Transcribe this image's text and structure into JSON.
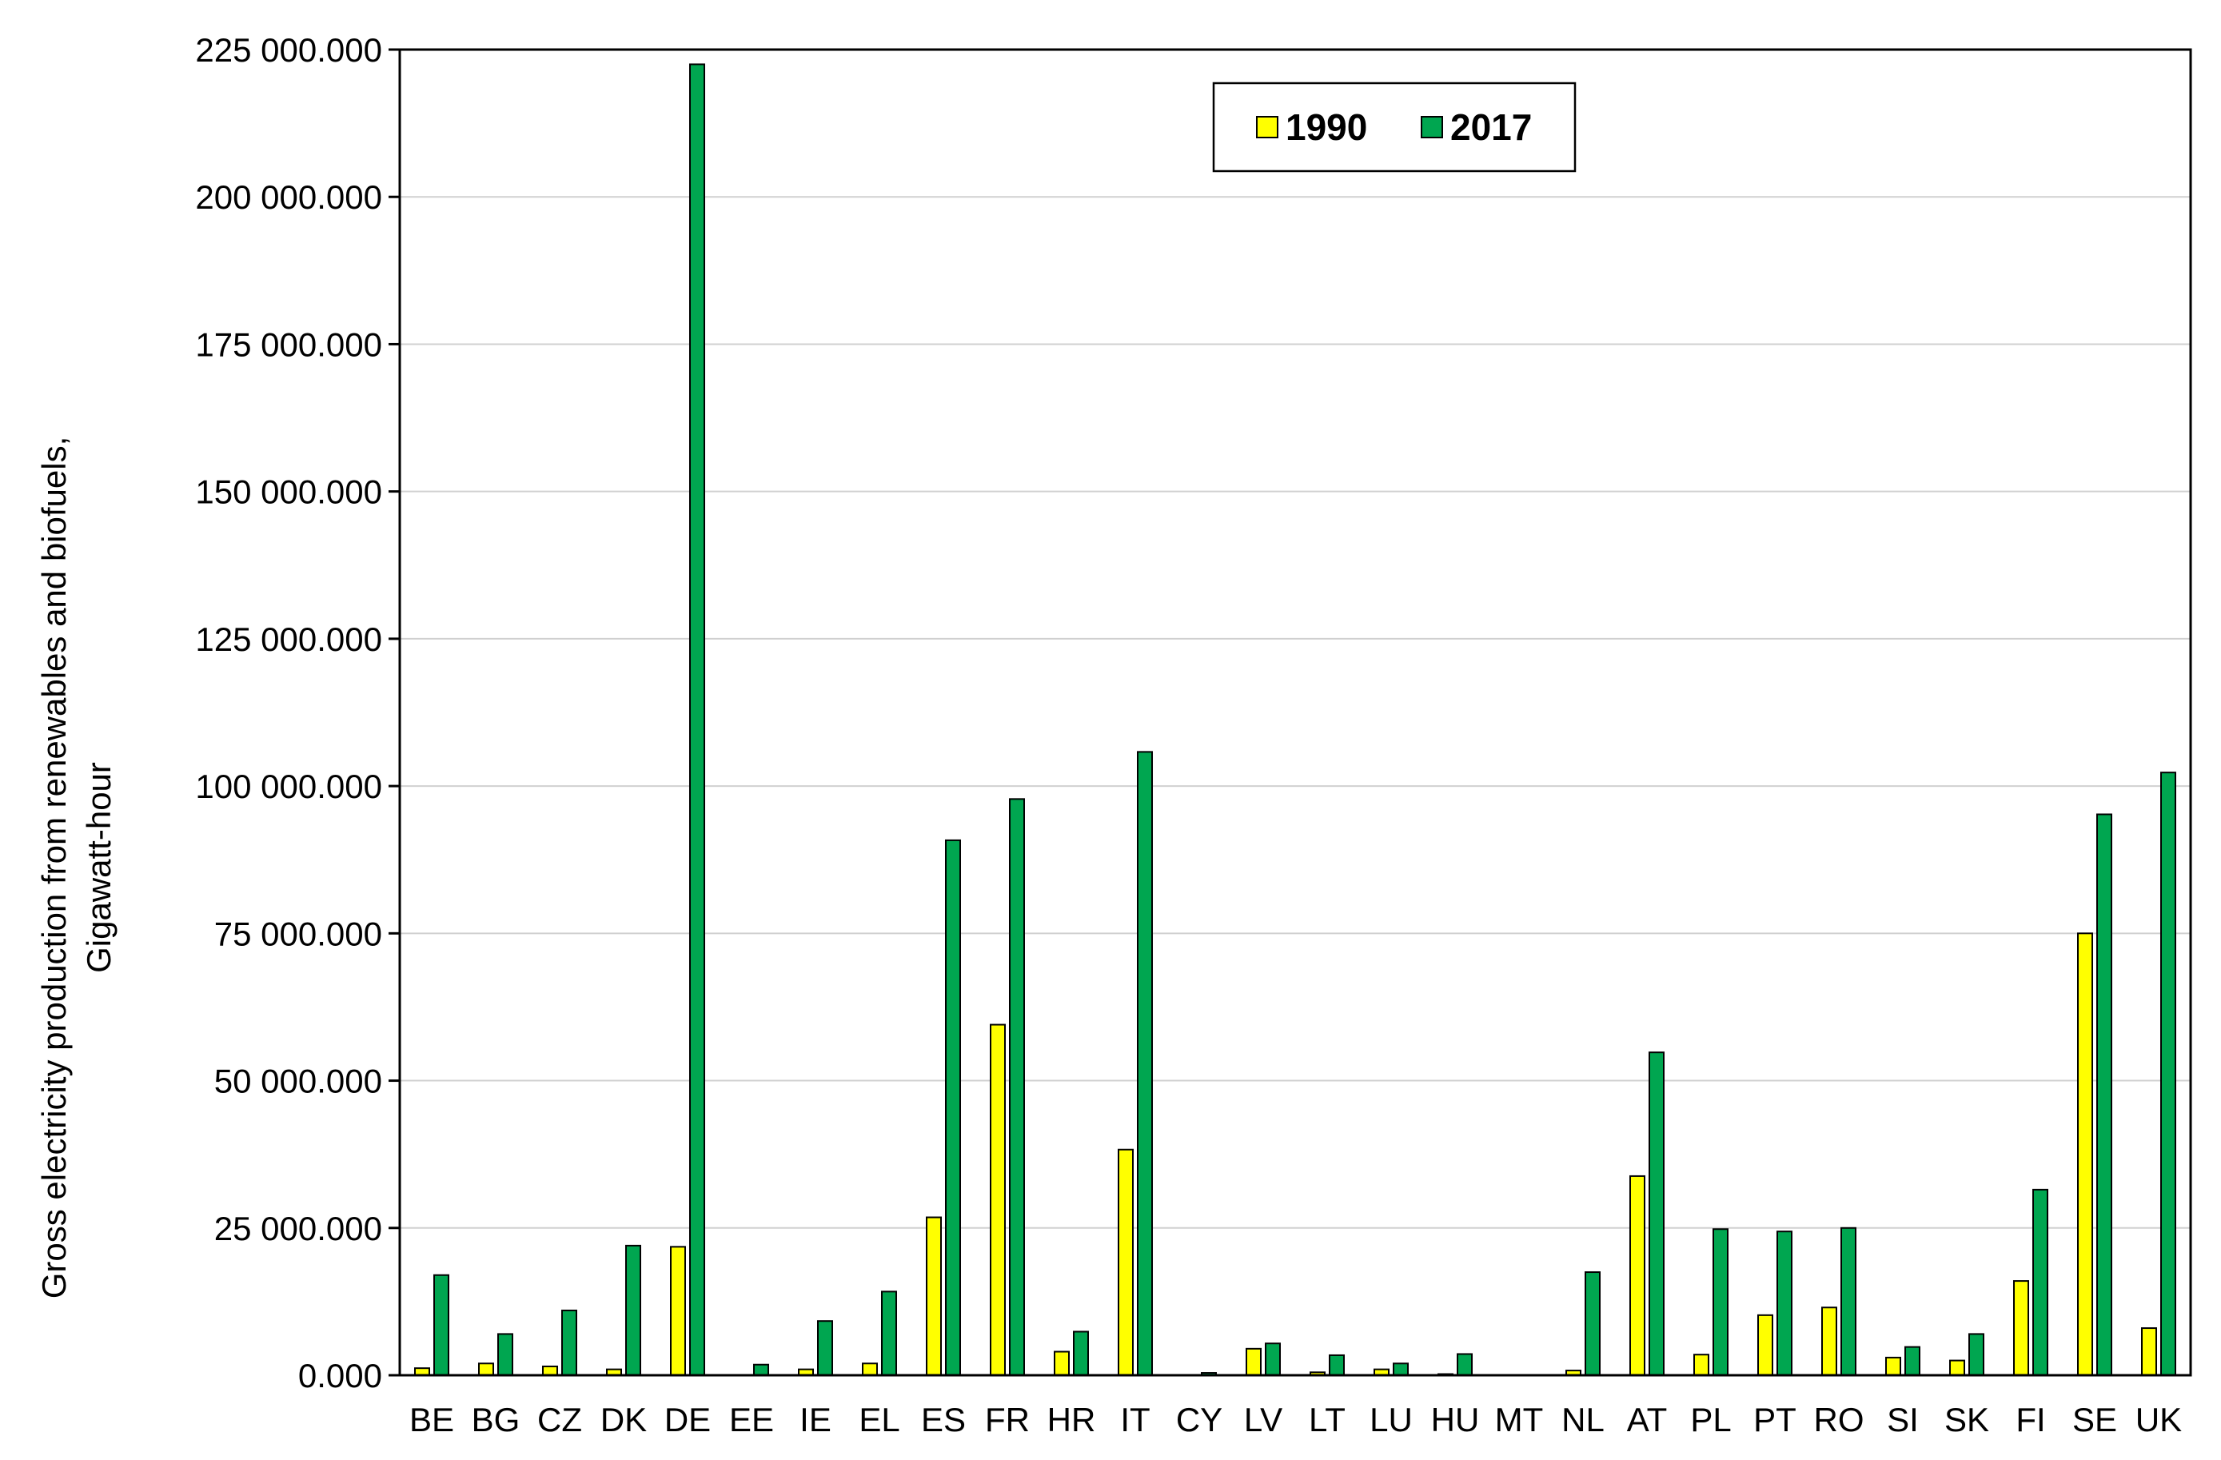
{
  "chart_data": {
    "type": "bar",
    "ylabel_line1": "Gross electricity production from renewables and biofuels,",
    "ylabel_line2": "Gigawatt-hour",
    "ylim": [
      0,
      225000
    ],
    "y_ticks": [
      0,
      25000,
      50000,
      75000,
      100000,
      125000,
      150000,
      175000,
      200000,
      225000
    ],
    "y_tick_labels": [
      "0.000",
      "25 000.000",
      "50 000.000",
      "75 000.000",
      "100 000.000",
      "125 000.000",
      "150 000.000",
      "175 000.000",
      "200 000.000",
      "225 000.000"
    ],
    "grid": true,
    "legend_position": "top-center",
    "categories": [
      "BE",
      "BG",
      "CZ",
      "DK",
      "DE",
      "EE",
      "IE",
      "EL",
      "ES",
      "FR",
      "HR",
      "IT",
      "CY",
      "LV",
      "LT",
      "LU",
      "HU",
      "MT",
      "NL",
      "AT",
      "PL",
      "PT",
      "RO",
      "SI",
      "SK",
      "FI",
      "SE",
      "UK"
    ],
    "series": [
      {
        "name": "1990",
        "color": "#FFFF00",
        "values": [
          1200,
          2000,
          1500,
          1000,
          21800,
          0,
          1000,
          2000,
          26800,
          59500,
          4000,
          38300,
          0,
          4500,
          500,
          1000,
          200,
          0,
          800,
          33800,
          3500,
          10200,
          11500,
          3000,
          2500,
          16000,
          75000,
          8000
        ]
      },
      {
        "name": "2017",
        "color": "#00A650",
        "values": [
          17000,
          7000,
          11000,
          22000,
          222500,
          1800,
          9200,
          14200,
          90800,
          97800,
          7400,
          105800,
          400,
          5400,
          3400,
          2000,
          3600,
          0,
          17500,
          54800,
          24800,
          24400,
          25000,
          4800,
          7000,
          31500,
          95200,
          102300
        ]
      }
    ]
  }
}
